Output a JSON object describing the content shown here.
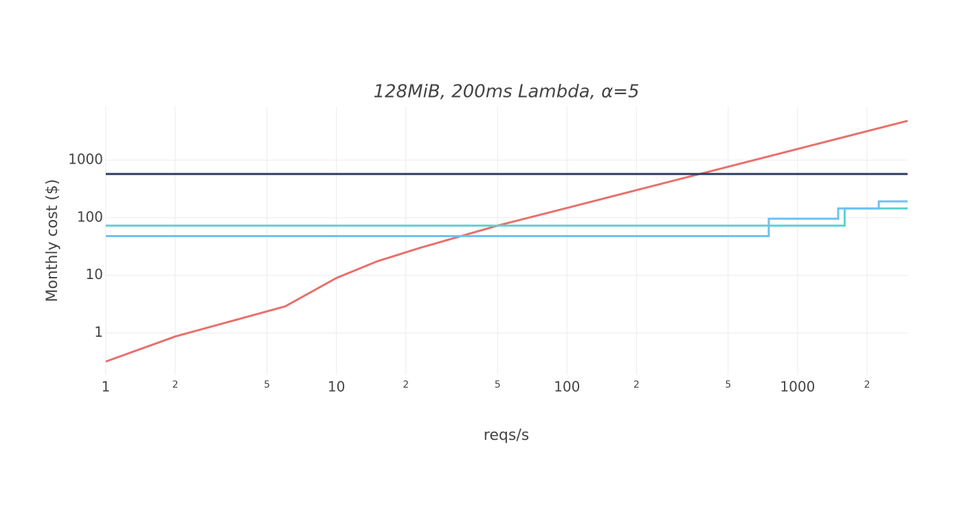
{
  "chart_data": {
    "type": "line",
    "title": "128MiB, 200ms Lambda, α=5",
    "x_label": "reqs/s",
    "y_label": "Monthly cost ($)",
    "xscale": "log",
    "yscale": "log",
    "grid": true,
    "xlim": [
      1,
      3000
    ],
    "ylim": [
      0.19,
      8500
    ],
    "xticks": [
      1,
      {
        "value": 2,
        "label": "2"
      },
      {
        "value": 5,
        "label": "5"
      },
      10,
      {
        "value": 20,
        "label": "2"
      },
      {
        "value": 50,
        "label": "5"
      },
      100,
      {
        "value": 200,
        "label": "2"
      },
      {
        "value": 500,
        "label": "5"
      },
      1000,
      {
        "value": 2000,
        "label": "2"
      }
    ],
    "yticks": [
      1,
      10,
      100,
      1000
    ],
    "series": [
      {
        "color": "#e8706b",
        "x": [
          1,
          2,
          6,
          10,
          15,
          23,
          50,
          100,
          3000
        ],
        "values": [
          0.32,
          0.87,
          2.9,
          9.0,
          17.5,
          30,
          73,
          148,
          4800
        ]
      },
      {
        "color": "#2d3b5e",
        "x": [
          1,
          3000
        ],
        "values": [
          575,
          575
        ]
      },
      {
        "color": "#5bd1d0",
        "x": [
          1,
          1600,
          1600,
          3000
        ],
        "values": [
          73,
          73,
          145,
          145
        ]
      },
      {
        "color": "#6ec1f0",
        "x": [
          1,
          750,
          750,
          1500,
          1500,
          2250,
          2250,
          3000
        ],
        "values": [
          48,
          48,
          96,
          96,
          145,
          145,
          192,
          192
        ]
      }
    ]
  }
}
